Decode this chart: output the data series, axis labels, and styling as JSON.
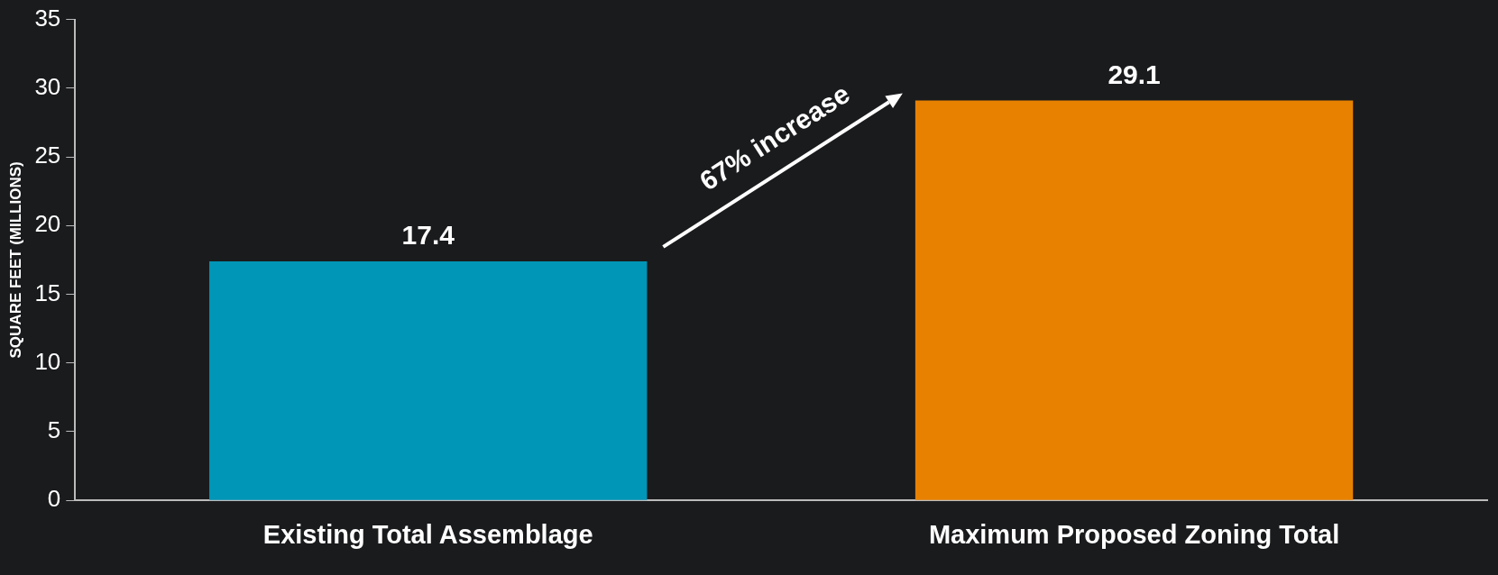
{
  "chart_data": {
    "type": "bar",
    "ylabel": "SQUARE FEET (MILLIONS)",
    "categories": [
      "Existing Total Assemblage",
      "Maximum Proposed Zoning Total"
    ],
    "values": [
      17.4,
      29.1
    ],
    "colors": [
      "#0096b7",
      "#e88100"
    ],
    "ylim": [
      0,
      35
    ],
    "yticks": [
      0,
      5,
      10,
      15,
      20,
      25,
      30,
      35
    ],
    "grid": false,
    "legend": false,
    "data_labels": true,
    "annotations": [
      "67% increase"
    ]
  }
}
